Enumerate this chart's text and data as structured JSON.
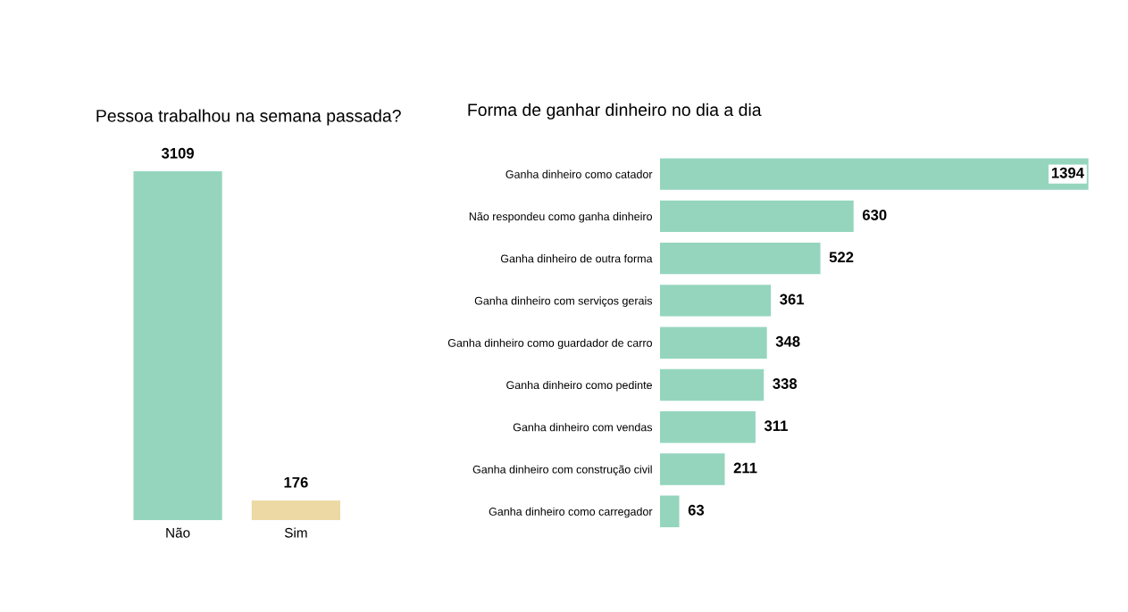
{
  "chart_data": [
    {
      "type": "bar",
      "title": "Pessoa trabalhou na semana passada?",
      "categories": [
        "Não",
        "Sim"
      ],
      "values": [
        3109,
        176
      ],
      "colors": [
        "#95d5be",
        "#ecd9a4"
      ],
      "data_labels": true
    },
    {
      "type": "bar",
      "orientation": "horizontal",
      "title": "Forma de ganhar dinheiro no dia a dia",
      "categories": [
        "Ganha dinheiro como catador",
        "Não respondeu como ganha dinheiro",
        "Ganha dinheiro de outra forma",
        "Ganha dinheiro com serviços gerais",
        "Ganha dinheiro como guardador de carro",
        "Ganha dinheiro como pedinte",
        "Ganha dinheiro com vendas",
        "Ganha dinheiro com construção civil",
        "Ganha dinheiro como carregador"
      ],
      "values": [
        1394,
        630,
        522,
        361,
        348,
        338,
        311,
        211,
        63
      ],
      "color": "#95d5be",
      "data_labels": true
    }
  ]
}
